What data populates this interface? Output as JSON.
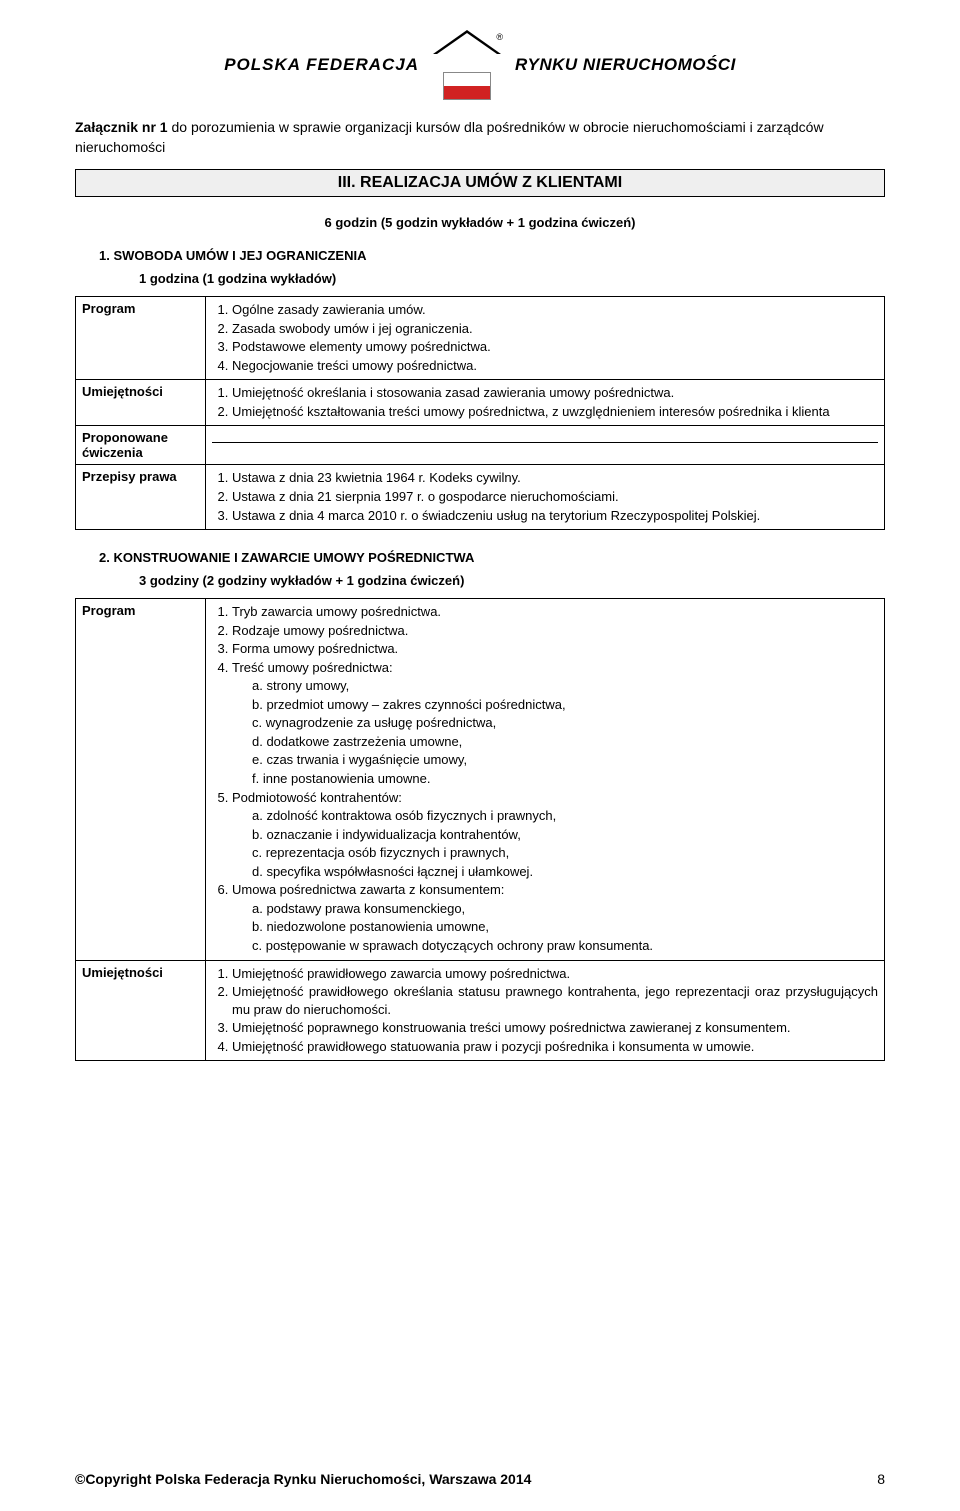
{
  "logo": {
    "left": "POLSKA FEDERACJA",
    "right": "RYNKU NIERUCHOMOŚCI",
    "registered": "®"
  },
  "attachment": {
    "boldPrefix": "Załącznik nr 1",
    "rest": " do porozumienia w sprawie organizacji kursów dla pośredników w obrocie nieruchomościami i zarządców nieruchomości"
  },
  "sectionTitle": "III. REALIZACJA UMÓW Z KLIENTAMI",
  "sectionHours": "6 godzin (5 godzin wykładów + 1 godzina ćwiczeń)",
  "sub1": {
    "title": "1.   SWOBODA UMÓW I JEJ OGRANICZENIA",
    "hours": "1 godzina (1 godzina wykładów)",
    "rows": {
      "programLabel": "Program",
      "skillsLabel": "Umiejętności",
      "exercisesLabel": "Proponowane ćwiczenia",
      "lawLabel": "Przepisy prawa",
      "program": [
        "Ogólne zasady zawierania umów.",
        "Zasada swobody umów i jej ograniczenia.",
        "Podstawowe elementy umowy pośrednictwa.",
        "Negocjowanie treści umowy pośrednictwa."
      ],
      "skills": [
        "Umiejętność określania i stosowania zasad zawierania umowy pośrednictwa.",
        "Umiejętność kształtowania treści umowy pośrednictwa, z uwzględnieniem interesów pośrednika i klienta"
      ],
      "law": [
        "Ustawa z dnia 23 kwietnia 1964 r. Kodeks cywilny.",
        "Ustawa z dnia 21 sierpnia 1997 r. o gospodarce nieruchomościami.",
        "Ustawa z dnia 4 marca 2010 r. o świadczeniu usług na terytorium Rzeczypospolitej Polskiej."
      ]
    }
  },
  "sub2": {
    "title": "2.   KONSTRUOWANIE I ZAWARCIE UMOWY POŚREDNICTWA",
    "hours": "3 godziny (2 godziny wykładów + 1 godzina ćwiczeń)",
    "rows": {
      "programLabel": "Program",
      "skillsLabel": "Umiejętności",
      "program1": "Tryb zawarcia umowy pośrednictwa.",
      "program2": "Rodzaje umowy pośrednictwa.",
      "program3": "Forma umowy pośrednictwa.",
      "program4": "Treść umowy pośrednictwa:",
      "program4sub": {
        "a": "a.   strony umowy,",
        "b": "b.   przedmiot umowy – zakres czynności pośrednictwa,",
        "c": "c.   wynagrodzenie za usługę pośrednictwa,",
        "d": "d.   dodatkowe zastrzeżenia umowne,",
        "e": "e.   czas trwania i wygaśnięcie umowy,",
        "f": "f.    inne postanowienia umowne."
      },
      "program5": "Podmiotowość kontrahentów:",
      "program5sub": {
        "a": "a.   zdolność kontraktowa osób fizycznych i prawnych,",
        "b": "b.   oznaczanie i indywidualizacja kontrahentów,",
        "c": "c.   reprezentacja osób fizycznych i prawnych,",
        "d": "d.   specyfika współwłasności łącznej i ułamkowej."
      },
      "program6": "Umowa pośrednictwa zawarta z konsumentem:",
      "program6sub": {
        "a": "a.   podstawy prawa konsumenckiego,",
        "b": "b.   niedozwolone postanowienia umowne,",
        "c": "c.   postępowanie w sprawach dotyczących ochrony praw konsumenta."
      },
      "skills": [
        "Umiejętność prawidłowego zawarcia umowy pośrednictwa.",
        "Umiejętność prawidłowego określania statusu prawnego kontrahenta, jego reprezentacji oraz przysługujących mu praw do nieruchomości.",
        "Umiejętność poprawnego konstruowania treści umowy pośrednictwa zawieranej z konsumentem.",
        "Umiejętność prawidłowego statuowania praw i pozycji pośrednika i konsumenta w umowie."
      ]
    }
  },
  "footer": {
    "copyright": "©Copyright Polska Federacja Rynku Nieruchomości, Warszawa 2014",
    "page": "8"
  }
}
